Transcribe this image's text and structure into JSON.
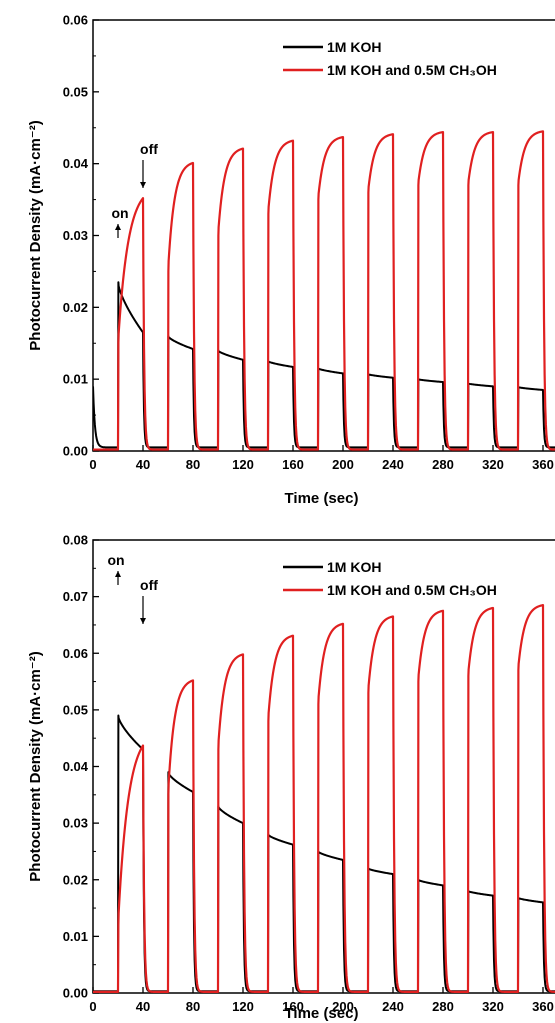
{
  "chart_data": [
    {
      "type": "line",
      "xlabel": "Time (sec)",
      "ylabel": "Photocurrent Density (mA·cm⁻²)",
      "xlim": [
        0,
        380
      ],
      "ylim": [
        0,
        0.06
      ],
      "xticks": [
        "0",
        "40",
        "80",
        "120",
        "160",
        "200",
        "240",
        "280",
        "320",
        "360"
      ],
      "yticks": [
        "0.00",
        "0.01",
        "0.02",
        "0.03",
        "0.04",
        "0.05",
        "0.06"
      ],
      "legend_position": "top-right",
      "light_on_intervals": [
        [
          20,
          40
        ],
        [
          60,
          80
        ],
        [
          100,
          120
        ],
        [
          140,
          160
        ],
        [
          180,
          200
        ],
        [
          220,
          240
        ],
        [
          260,
          280
        ],
        [
          300,
          320
        ],
        [
          340,
          360
        ]
      ],
      "annotations": [
        {
          "text": "on",
          "x": 20,
          "arrow": "up"
        },
        {
          "text": "off",
          "x": 40,
          "arrow": "down"
        }
      ],
      "series": [
        {
          "name": "1M KOH",
          "color": "#000000",
          "light_on_start": [
            0.0235,
            0.016,
            0.014,
            0.0125,
            0.0115,
            0.0107,
            0.01,
            0.0094,
            0.0089
          ],
          "light_on_end": [
            0.0165,
            0.0142,
            0.0127,
            0.0117,
            0.0108,
            0.0102,
            0.0096,
            0.009,
            0.0085
          ],
          "dark_level": 0.0005,
          "initial": 0.009
        },
        {
          "name": "1M KOH and 0.5M CH₃OH",
          "color": "#e02020",
          "light_on_start": [
            0.015,
            0.025,
            0.03,
            0.033,
            0.035,
            0.036,
            0.037,
            0.037,
            0.037
          ],
          "light_on_end": [
            0.0352,
            0.0401,
            0.0421,
            0.0432,
            0.0437,
            0.0441,
            0.0444,
            0.0444,
            0.0445
          ],
          "dark_level": 0.0002
        }
      ]
    },
    {
      "type": "line",
      "xlabel": "Time (sec)",
      "ylabel": "Photocurrent Density (mA·cm⁻²)",
      "xlim": [
        0,
        380
      ],
      "ylim": [
        0,
        0.08
      ],
      "xticks": [
        "0",
        "40",
        "80",
        "120",
        "160",
        "200",
        "240",
        "280",
        "320",
        "360"
      ],
      "yticks": [
        "0.00",
        "0.01",
        "0.02",
        "0.03",
        "0.04",
        "0.05",
        "0.06",
        "0.07",
        "0.08"
      ],
      "legend_position": "top-right",
      "light_on_intervals": [
        [
          20,
          40
        ],
        [
          60,
          80
        ],
        [
          100,
          120
        ],
        [
          140,
          160
        ],
        [
          180,
          200
        ],
        [
          220,
          240
        ],
        [
          260,
          280
        ],
        [
          300,
          320
        ],
        [
          340,
          360
        ]
      ],
      "annotations": [
        {
          "text": "on",
          "x": 20,
          "arrow": "up"
        },
        {
          "text": "off",
          "x": 40,
          "arrow": "down"
        }
      ],
      "series": [
        {
          "name": "1M KOH",
          "color": "#000000",
          "light_on_start": [
            0.049,
            0.039,
            0.033,
            0.028,
            0.025,
            0.022,
            0.02,
            0.018,
            0.0168
          ],
          "light_on_end": [
            0.043,
            0.0355,
            0.03,
            0.0262,
            0.0235,
            0.021,
            0.019,
            0.0172,
            0.016
          ],
          "dark_level": 0.0003
        },
        {
          "name": "1M KOH and 0.5M CH₃OH",
          "color": "#e02020",
          "light_on_start": [
            0.012,
            0.035,
            0.043,
            0.048,
            0.051,
            0.053,
            0.055,
            0.056,
            0.057
          ],
          "light_on_end": [
            0.0437,
            0.0552,
            0.0598,
            0.0631,
            0.0652,
            0.0665,
            0.0675,
            0.068,
            0.0685
          ],
          "dark_level": 0.0002
        }
      ]
    }
  ]
}
